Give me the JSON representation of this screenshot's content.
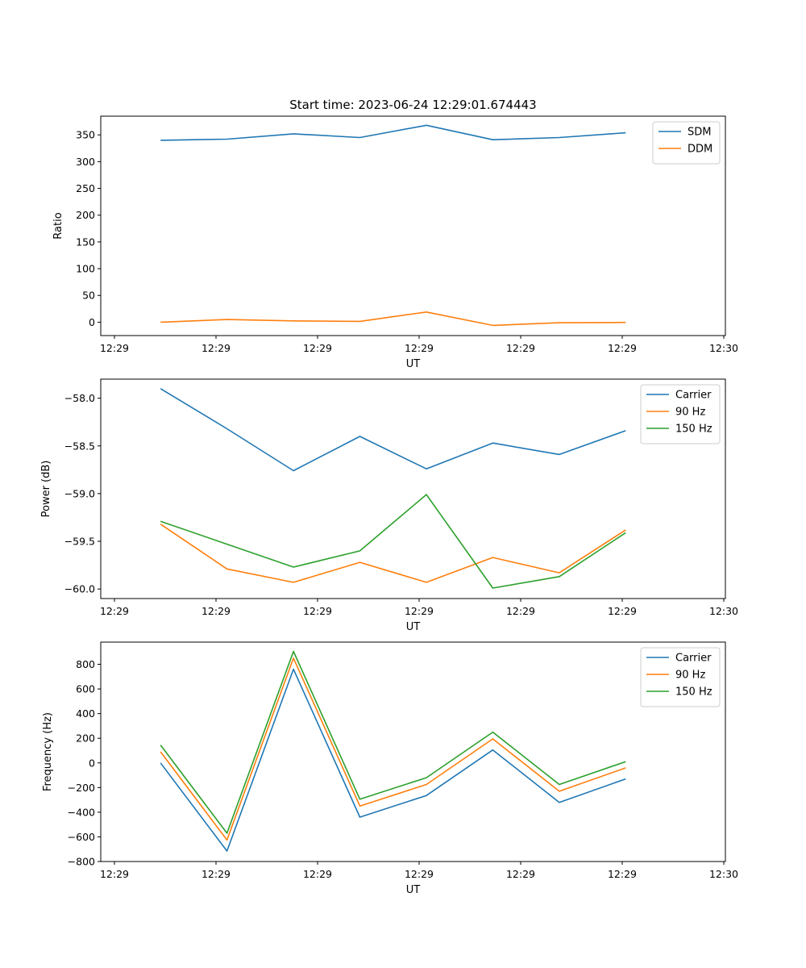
{
  "chart_data": [
    {
      "type": "line",
      "title": "Start time: 2023-06-24 12:29:01.674443",
      "xlabel": "UT",
      "ylabel": "Ratio",
      "x_tick_labels": [
        "12:29",
        "12:29",
        "12:29",
        "12:29",
        "12:29",
        "12:29",
        "12:30"
      ],
      "y_ticks": [
        0,
        50,
        100,
        150,
        200,
        250,
        300,
        350
      ],
      "ylim": [
        -25,
        385
      ],
      "xlim": [
        -0.9,
        8.5
      ],
      "grid": false,
      "legend_position": "top-right",
      "x": [
        0,
        1,
        2,
        3,
        4,
        5,
        6,
        7
      ],
      "series": [
        {
          "name": "SDM",
          "color": "#1f77b4",
          "values": [
            340,
            342,
            352,
            345,
            368,
            341,
            345,
            354
          ]
        },
        {
          "name": "DDM",
          "color": "#ff7f0e",
          "values": [
            0,
            5,
            2.5,
            1.5,
            19,
            -6,
            -1,
            -0.5
          ]
        }
      ]
    },
    {
      "type": "line",
      "title": "",
      "xlabel": "UT",
      "ylabel": "Power (dB)",
      "x_tick_labels": [
        "12:29",
        "12:29",
        "12:29",
        "12:29",
        "12:29",
        "12:29",
        "12:30"
      ],
      "y_ticks": [
        -60.0,
        -59.5,
        -59.0,
        -58.5,
        -58.0
      ],
      "y_tick_labels": [
        "−60.0",
        "−59.5",
        "−59.0",
        "−58.5",
        "−58.0"
      ],
      "ylim": [
        -60.1,
        -57.8
      ],
      "xlim": [
        -0.9,
        8.5
      ],
      "grid": false,
      "legend_position": "top-right",
      "x": [
        0,
        1,
        2,
        3,
        4,
        5,
        6,
        7
      ],
      "series": [
        {
          "name": "Carrier",
          "color": "#1f77b4",
          "values": [
            -57.9,
            -58.32,
            -58.76,
            -58.4,
            -58.74,
            -58.47,
            -58.59,
            -58.34
          ]
        },
        {
          "name": "90 Hz",
          "color": "#ff7f0e",
          "values": [
            -59.32,
            -59.79,
            -59.93,
            -59.72,
            -59.93,
            -59.67,
            -59.83,
            -59.38
          ]
        },
        {
          "name": "150 Hz",
          "color": "#2ca02c",
          "values": [
            -59.29,
            -59.53,
            -59.77,
            -59.6,
            -59.01,
            -59.99,
            -59.87,
            -59.41
          ]
        }
      ]
    },
    {
      "type": "line",
      "title": "",
      "xlabel": "UT",
      "ylabel": "Frequency (Hz)",
      "x_tick_labels": [
        "12:29",
        "12:29",
        "12:29",
        "12:29",
        "12:29",
        "12:29",
        "12:30"
      ],
      "y_ticks": [
        -800,
        -600,
        -400,
        -200,
        0,
        200,
        400,
        600,
        800
      ],
      "y_tick_labels": [
        "−800",
        "−600",
        "−400",
        "−200",
        "0",
        "200",
        "400",
        "600",
        "800"
      ],
      "ylim": [
        -800,
        980
      ],
      "xlim": [
        -0.9,
        8.5
      ],
      "grid": false,
      "legend_position": "top-right",
      "x": [
        0,
        1,
        2,
        3,
        4,
        5,
        6,
        7
      ],
      "series": [
        {
          "name": "Carrier",
          "color": "#1f77b4",
          "values": [
            0,
            -715,
            760,
            -440,
            -265,
            105,
            -320,
            -130
          ]
        },
        {
          "name": "90 Hz",
          "color": "#ff7f0e",
          "values": [
            90,
            -625,
            850,
            -350,
            -175,
            195,
            -230,
            -40
          ]
        },
        {
          "name": "150 Hz",
          "color": "#2ca02c",
          "values": [
            145,
            -570,
            905,
            -295,
            -120,
            250,
            -175,
            10
          ]
        }
      ]
    }
  ]
}
